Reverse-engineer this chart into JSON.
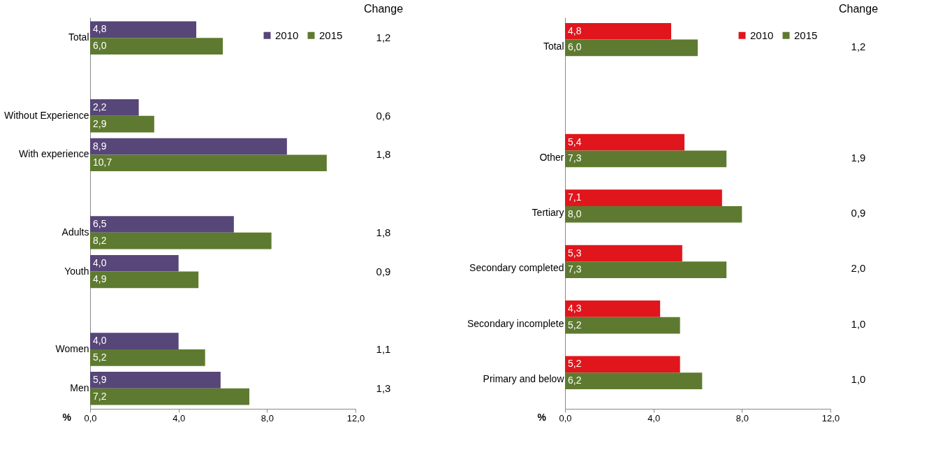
{
  "chart_data": [
    {
      "type": "bar",
      "orientation": "horizontal",
      "categories": [
        "Total",
        null,
        "Without Experience",
        "With experience",
        null,
        "Adults",
        "Youth",
        null,
        "Women",
        "Men"
      ],
      "xlabel": "%",
      "xlim": [
        0,
        12
      ],
      "xticks": [
        {
          "value": 0,
          "label": "0,0"
        },
        {
          "value": 4,
          "label": "4,0"
        },
        {
          "value": 8,
          "label": "8,0"
        },
        {
          "value": 12,
          "label": "12,0"
        }
      ],
      "grid": false,
      "legend": "top right",
      "series": [
        {
          "name": "2010",
          "color": "#574678",
          "values": [
            4.8,
            null,
            2.2,
            8.9,
            null,
            6.5,
            4.0,
            null,
            4.0,
            5.9
          ],
          "value_labels": [
            "4,8",
            null,
            "2,2",
            "8,9",
            null,
            "6,5",
            "4,0",
            null,
            "4,0",
            "5,9"
          ]
        },
        {
          "name": "2015",
          "color": "#5e7a30",
          "values": [
            6.0,
            null,
            2.9,
            10.7,
            null,
            8.2,
            4.9,
            null,
            5.2,
            7.2
          ],
          "value_labels": [
            "6,0",
            null,
            "2,9",
            "10,7",
            null,
            "8,2",
            "4,9",
            null,
            "5,2",
            "7,2"
          ]
        }
      ],
      "annotations": [
        "Change",
        "1,2",
        "0,6",
        "1,8",
        "1,8",
        "0,9",
        "1,1",
        "1,3"
      ]
    },
    {
      "type": "bar",
      "orientation": "horizontal",
      "categories": [
        "Total",
        null,
        "Other",
        "Tertiary",
        "Secondary completed",
        "Secondary incomplete",
        "Primary and below"
      ],
      "xlabel": "%",
      "xlim": [
        0,
        12
      ],
      "xticks": [
        {
          "value": 0,
          "label": "0,0"
        },
        {
          "value": 4,
          "label": "4,0"
        },
        {
          "value": 8,
          "label": "8,0"
        },
        {
          "value": 12,
          "label": "12,0"
        }
      ],
      "grid": false,
      "legend": "top right",
      "series": [
        {
          "name": "2010",
          "color": "#e0161c",
          "values": [
            4.8,
            null,
            5.4,
            7.1,
            5.3,
            4.3,
            5.2
          ],
          "value_labels": [
            "4,8",
            null,
            "5,4",
            "7,1",
            "5,3",
            "4,3",
            "5,2"
          ]
        },
        {
          "name": "2015",
          "color": "#5e7a30",
          "values": [
            6.0,
            null,
            7.3,
            8.0,
            7.3,
            5.2,
            6.2
          ],
          "value_labels": [
            "6,0",
            null,
            "7,3",
            "8,0",
            "7,3",
            "5,2",
            "6,2"
          ]
        }
      ],
      "annotations": [
        "Change",
        "1,2",
        "1,9",
        "0,9",
        "2,0",
        "1,0",
        "1,0"
      ]
    }
  ]
}
